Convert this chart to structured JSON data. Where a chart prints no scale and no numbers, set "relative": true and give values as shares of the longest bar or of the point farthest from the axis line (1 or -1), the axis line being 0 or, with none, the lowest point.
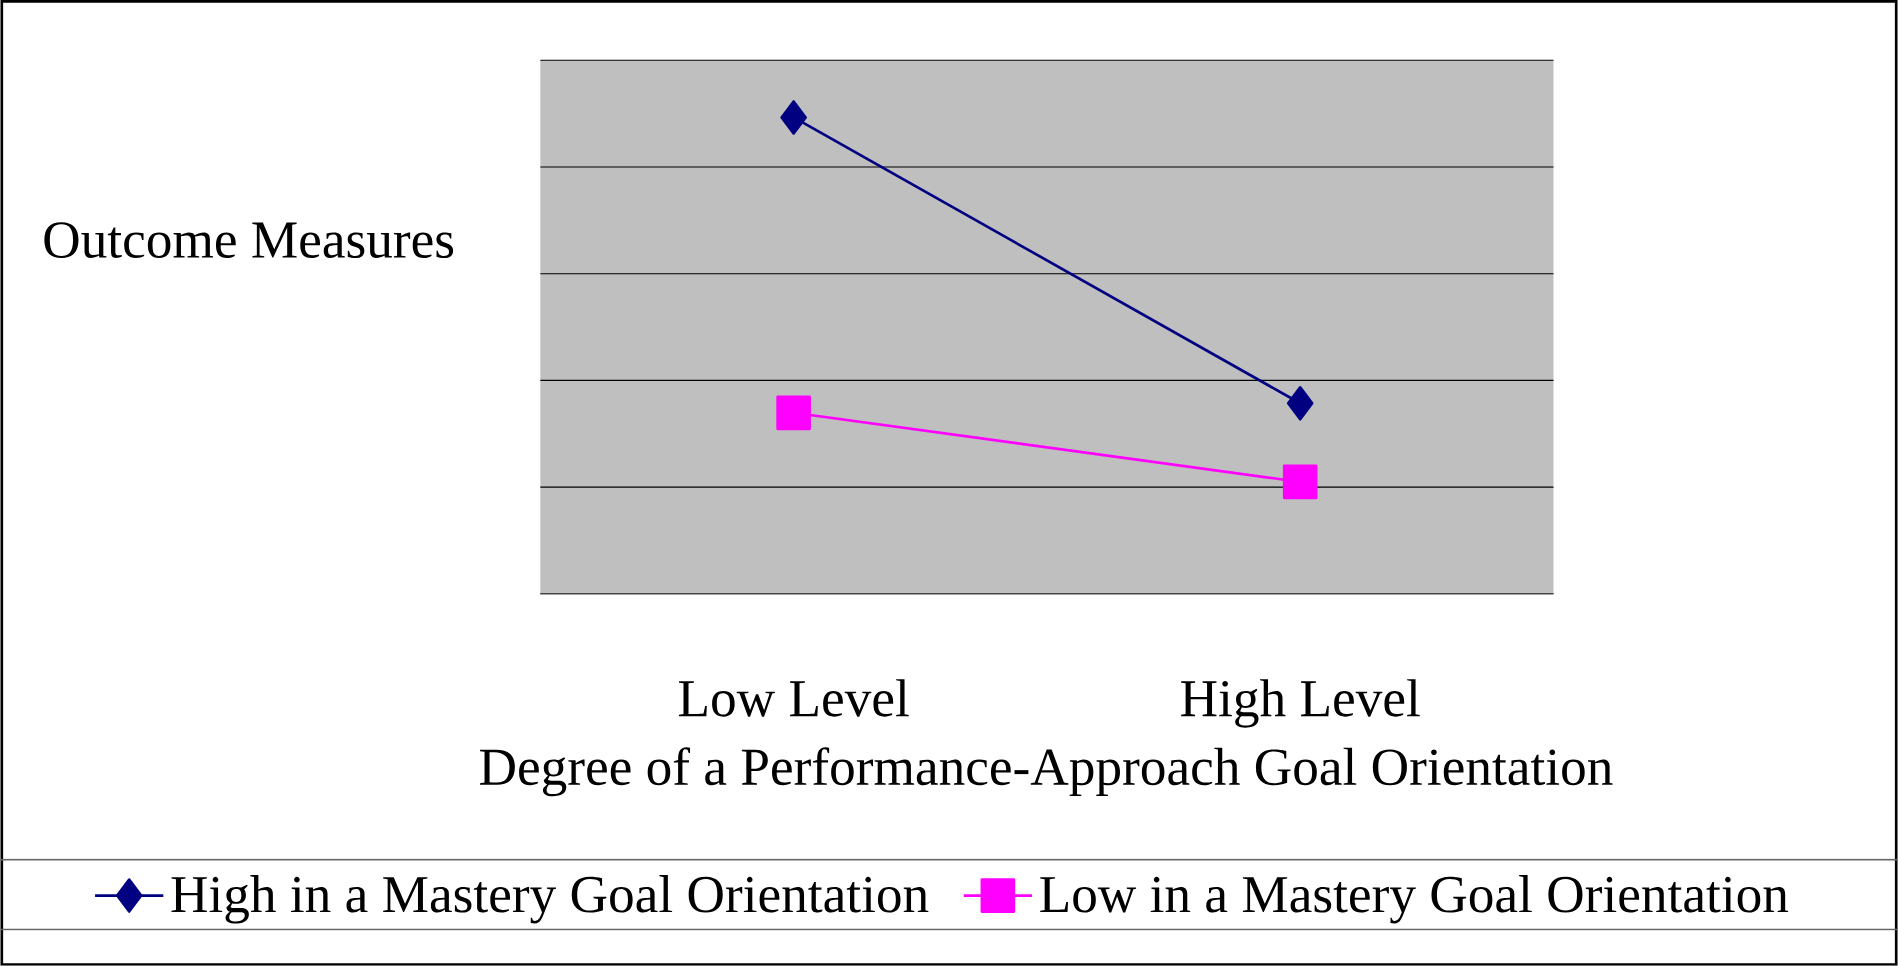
{
  "chart_data": {
    "type": "line",
    "relative": true,
    "ylabel": "Outcome Measures",
    "xlabel": "Degree of a Performance-Approach Goal Orientation",
    "categories": [
      "Low Level",
      "High Level"
    ],
    "series": [
      {
        "name": "High in a Mastery Goal Orientation",
        "color": "#000080",
        "marker": "diamond",
        "values": [
          1,
          0.4
        ]
      },
      {
        "name": "Low in a Mastery Goal Orientation",
        "color": "#ff00ff",
        "marker": "square",
        "values": [
          0.38,
          0.235
        ]
      }
    ],
    "grid": "y",
    "legend": "bottom",
    "line_style": "solid"
  }
}
